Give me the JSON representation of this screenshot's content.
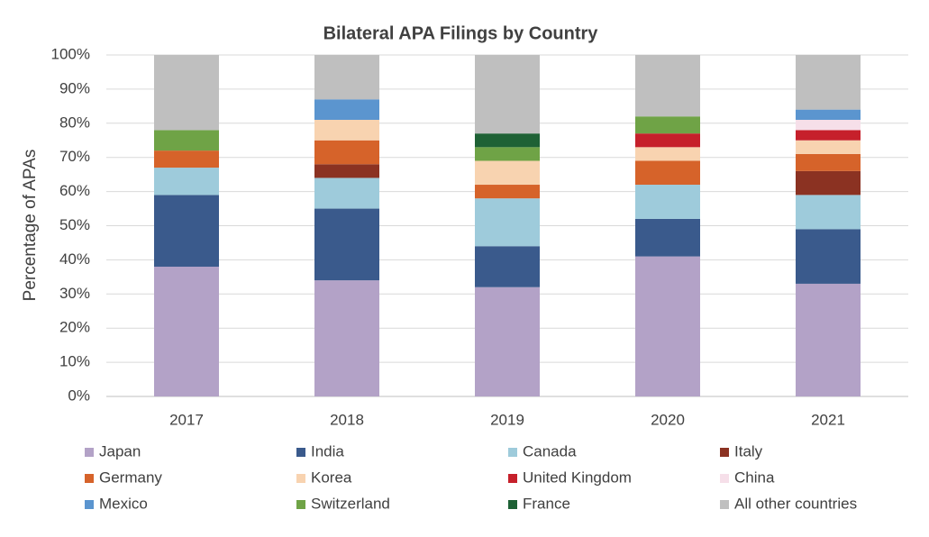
{
  "chart_data": {
    "type": "stacked_bar",
    "title": "Bilateral APA Filings by Country",
    "y_label": "Percentage of APAs",
    "categories": [
      "2017",
      "2018",
      "2019",
      "2020",
      "2021"
    ],
    "series": [
      {
        "name": "Japan",
        "color": "#b3a2c7",
        "values": [
          38,
          34,
          32,
          41,
          33
        ]
      },
      {
        "name": "India",
        "color": "#3a5a8c",
        "values": [
          21,
          21,
          12,
          11,
          16
        ]
      },
      {
        "name": "Canada",
        "color": "#9ecbdb",
        "values": [
          8,
          9,
          14,
          10,
          10
        ]
      },
      {
        "name": "Italy",
        "color": "#8b3222",
        "values": [
          0,
          4,
          0,
          0,
          7
        ]
      },
      {
        "name": "Germany",
        "color": "#d6632a",
        "values": [
          5,
          7,
          4,
          7,
          5
        ]
      },
      {
        "name": "Korea",
        "color": "#f8d3b0",
        "values": [
          0,
          6,
          7,
          4,
          4
        ]
      },
      {
        "name": "United Kingdom",
        "color": "#c6202b",
        "values": [
          0,
          0,
          0,
          4,
          3
        ]
      },
      {
        "name": "China",
        "color": "#f6dfe9",
        "values": [
          0,
          0,
          0,
          0,
          3
        ]
      },
      {
        "name": "Mexico",
        "color": "#5b95cf",
        "values": [
          0,
          6,
          0,
          0,
          3
        ]
      },
      {
        "name": "Switzerland",
        "color": "#6fa346",
        "values": [
          6,
          0,
          4,
          5,
          0
        ]
      },
      {
        "name": "France",
        "color": "#1e6135",
        "values": [
          0,
          0,
          4,
          0,
          0
        ]
      },
      {
        "name": "All other countries",
        "color": "#bfbfbf",
        "values": [
          22,
          13,
          23,
          18,
          16
        ]
      }
    ],
    "ylim": [
      0,
      100
    ],
    "yticks": [
      {
        "value": 0,
        "label": "0%"
      },
      {
        "value": 10,
        "label": "10%"
      },
      {
        "value": 20,
        "label": "20%"
      },
      {
        "value": 30,
        "label": "30%"
      },
      {
        "value": 40,
        "label": "40%"
      },
      {
        "value": 50,
        "label": "50%"
      },
      {
        "value": 60,
        "label": "60%"
      },
      {
        "value": 70,
        "label": "70%"
      },
      {
        "value": 80,
        "label": "80%"
      },
      {
        "value": 90,
        "label": "90%"
      },
      {
        "value": 100,
        "label": "100%"
      }
    ],
    "grid": true
  }
}
